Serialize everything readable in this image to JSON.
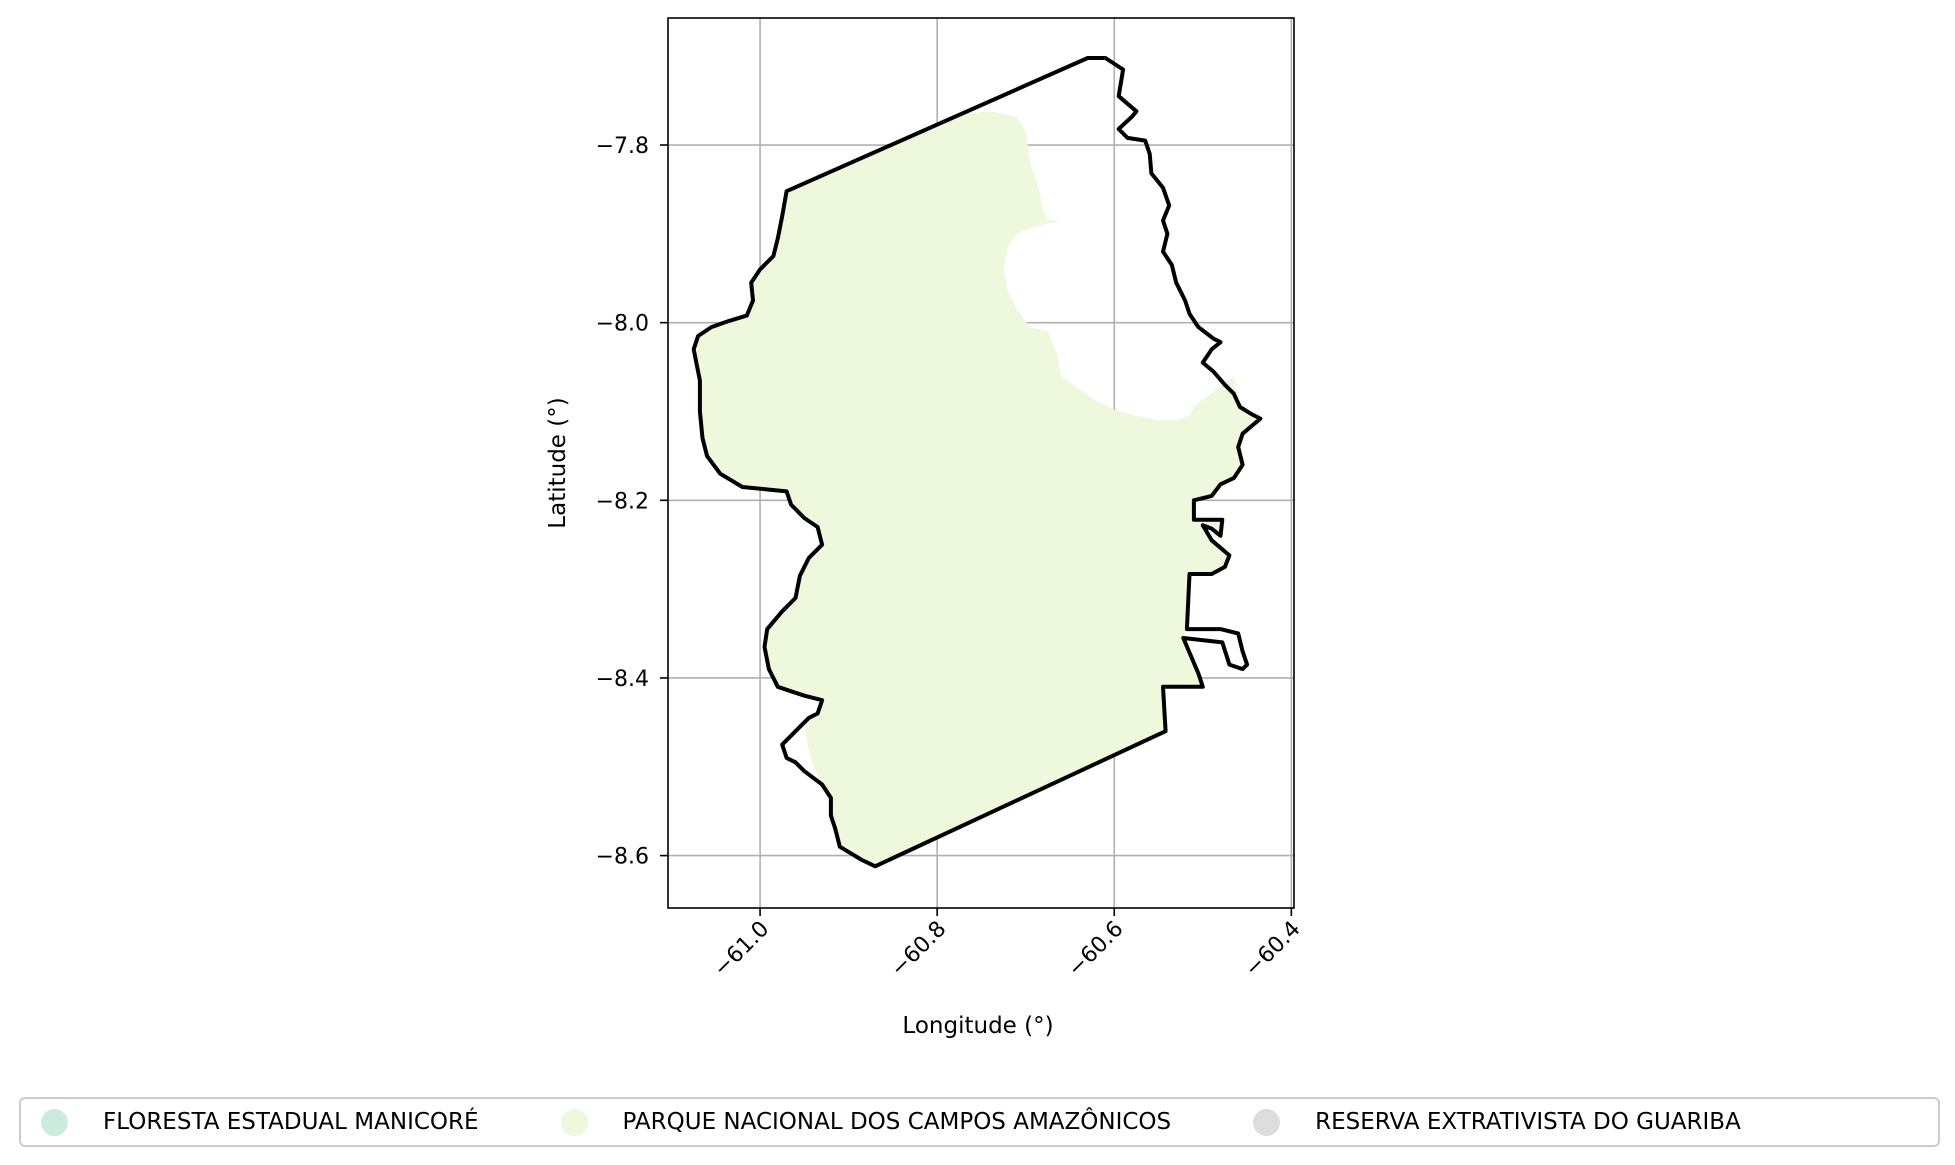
{
  "chart_data": {
    "type": "map",
    "xlabel": "Longitude (°)",
    "ylabel": "Latitude (°)",
    "xlim": [
      -61.104,
      -60.397
    ],
    "ylim": [
      -8.659,
      -7.657
    ],
    "xticks": [
      -61.0,
      -60.8,
      -60.6,
      -60.4
    ],
    "yticks": [
      -7.8,
      -8.0,
      -8.2,
      -8.4,
      -8.6
    ],
    "xtick_labels": [
      "−61.0",
      "−60.8",
      "−60.6",
      "−60.4"
    ],
    "ytick_labels": [
      "−7.8",
      "−8.0",
      "−8.2",
      "−8.4",
      "−8.6"
    ],
    "grid": true,
    "legend_position": "bottom",
    "boundary": {
      "color": "#000000",
      "coords": [
        [
          -60.97,
          -7.852
        ],
        [
          -60.63,
          -7.702
        ],
        [
          -60.61,
          -7.702
        ],
        [
          -60.59,
          -7.715
        ],
        [
          -60.595,
          -7.745
        ],
        [
          -60.575,
          -7.762
        ],
        [
          -60.58,
          -7.768
        ],
        [
          -60.595,
          -7.782
        ],
        [
          -60.585,
          -7.792
        ],
        [
          -60.565,
          -7.795
        ],
        [
          -60.56,
          -7.81
        ],
        [
          -60.558,
          -7.832
        ],
        [
          -60.545,
          -7.848
        ],
        [
          -60.538,
          -7.868
        ],
        [
          -60.545,
          -7.885
        ],
        [
          -60.54,
          -7.9
        ],
        [
          -60.545,
          -7.92
        ],
        [
          -60.535,
          -7.935
        ],
        [
          -60.53,
          -7.955
        ],
        [
          -60.52,
          -7.975
        ],
        [
          -60.515,
          -7.99
        ],
        [
          -60.505,
          -8.005
        ],
        [
          -60.488,
          -8.018
        ],
        [
          -60.48,
          -8.022
        ],
        [
          -60.49,
          -8.03
        ],
        [
          -60.5,
          -8.045
        ],
        [
          -60.488,
          -8.055
        ],
        [
          -60.475,
          -8.07
        ],
        [
          -60.465,
          -8.08
        ],
        [
          -60.458,
          -8.095
        ],
        [
          -60.445,
          -8.103
        ],
        [
          -60.435,
          -8.108
        ],
        [
          -60.455,
          -8.125
        ],
        [
          -60.46,
          -8.14
        ],
        [
          -60.455,
          -8.16
        ],
        [
          -60.465,
          -8.175
        ],
        [
          -60.48,
          -8.182
        ],
        [
          -60.49,
          -8.195
        ],
        [
          -60.51,
          -8.2
        ],
        [
          -60.51,
          -8.222
        ],
        [
          -60.478,
          -8.222
        ],
        [
          -60.48,
          -8.24
        ],
        [
          -60.49,
          -8.232
        ],
        [
          -60.5,
          -8.228
        ],
        [
          -60.49,
          -8.245
        ],
        [
          -60.47,
          -8.262
        ],
        [
          -60.475,
          -8.275
        ],
        [
          -60.49,
          -8.283
        ],
        [
          -60.515,
          -8.283
        ],
        [
          -60.518,
          -8.345
        ],
        [
          -60.48,
          -8.345
        ],
        [
          -60.46,
          -8.35
        ],
        [
          -60.455,
          -8.37
        ],
        [
          -60.45,
          -8.385
        ],
        [
          -60.455,
          -8.39
        ],
        [
          -60.47,
          -8.385
        ],
        [
          -60.478,
          -8.36
        ],
        [
          -60.522,
          -8.355
        ],
        [
          -60.505,
          -8.395
        ],
        [
          -60.5,
          -8.41
        ],
        [
          -60.545,
          -8.41
        ],
        [
          -60.542,
          -8.46
        ],
        [
          -60.87,
          -8.612
        ],
        [
          -60.885,
          -8.605
        ],
        [
          -60.91,
          -8.59
        ],
        [
          -60.915,
          -8.57
        ],
        [
          -60.92,
          -8.555
        ],
        [
          -60.92,
          -8.535
        ],
        [
          -60.93,
          -8.52
        ],
        [
          -60.95,
          -8.505
        ],
        [
          -60.96,
          -8.495
        ],
        [
          -60.97,
          -8.49
        ],
        [
          -60.975,
          -8.475
        ],
        [
          -60.965,
          -8.465
        ],
        [
          -60.955,
          -8.455
        ],
        [
          -60.945,
          -8.445
        ],
        [
          -60.935,
          -8.44
        ],
        [
          -60.93,
          -8.425
        ],
        [
          -60.95,
          -8.42
        ],
        [
          -60.965,
          -8.415
        ],
        [
          -60.98,
          -8.41
        ],
        [
          -60.99,
          -8.39
        ],
        [
          -60.995,
          -8.365
        ],
        [
          -60.992,
          -8.345
        ],
        [
          -60.975,
          -8.325
        ],
        [
          -60.96,
          -8.31
        ],
        [
          -60.955,
          -8.285
        ],
        [
          -60.945,
          -8.265
        ],
        [
          -60.93,
          -8.25
        ],
        [
          -60.935,
          -8.23
        ],
        [
          -60.95,
          -8.22
        ],
        [
          -60.965,
          -8.205
        ],
        [
          -60.97,
          -8.19
        ],
        [
          -60.99,
          -8.188
        ],
        [
          -61.02,
          -8.185
        ],
        [
          -61.045,
          -8.17
        ],
        [
          -61.06,
          -8.15
        ],
        [
          -61.065,
          -8.13
        ],
        [
          -61.068,
          -8.1
        ],
        [
          -61.068,
          -8.065
        ],
        [
          -61.072,
          -8.045
        ],
        [
          -61.075,
          -8.03
        ],
        [
          -61.07,
          -8.015
        ],
        [
          -61.055,
          -8.005
        ],
        [
          -61.035,
          -7.998
        ],
        [
          -61.015,
          -7.992
        ],
        [
          -61.008,
          -7.975
        ],
        [
          -61.01,
          -7.955
        ],
        [
          -61.0,
          -7.94
        ],
        [
          -60.985,
          -7.925
        ],
        [
          -60.98,
          -7.905
        ],
        [
          -60.975,
          -7.88
        ],
        [
          -60.97,
          -7.852
        ]
      ]
    },
    "series": [
      {
        "name": "FLORESTA ESTADUAL MANICORÉ",
        "color": "#cdebdd",
        "features": []
      },
      {
        "name": "PARQUE NACIONAL DOS CAMPOS AMAZÔNICOS",
        "color": "#eef8dd",
        "features": [
          [
            [
              -60.97,
              -7.852
            ],
            [
              -60.77,
              -7.765
            ],
            [
              -60.74,
              -7.762
            ],
            [
              -60.71,
              -7.768
            ],
            [
              -60.7,
              -7.785
            ],
            [
              -60.695,
              -7.82
            ],
            [
              -60.685,
              -7.85
            ],
            [
              -60.68,
              -7.875
            ],
            [
              -60.675,
              -7.885
            ],
            [
              -60.66,
              -7.885
            ],
            [
              -60.69,
              -7.892
            ],
            [
              -60.71,
              -7.9
            ],
            [
              -60.72,
              -7.915
            ],
            [
              -60.725,
              -7.94
            ],
            [
              -60.72,
              -7.965
            ],
            [
              -60.71,
              -7.985
            ],
            [
              -60.695,
              -8.005
            ],
            [
              -60.675,
              -8.01
            ],
            [
              -60.665,
              -8.035
            ],
            [
              -60.66,
              -8.06
            ],
            [
              -60.625,
              -8.085
            ],
            [
              -60.6,
              -8.098
            ],
            [
              -60.575,
              -8.105
            ],
            [
              -60.55,
              -8.11
            ],
            [
              -60.53,
              -8.11
            ],
            [
              -60.515,
              -8.105
            ],
            [
              -60.51,
              -8.095
            ],
            [
              -60.465,
              -8.06
            ],
            [
              -60.458,
              -8.095
            ],
            [
              -60.445,
              -8.103
            ],
            [
              -60.435,
              -8.108
            ],
            [
              -60.455,
              -8.125
            ],
            [
              -60.46,
              -8.14
            ],
            [
              -60.455,
              -8.16
            ],
            [
              -60.465,
              -8.175
            ],
            [
              -60.48,
              -8.182
            ],
            [
              -60.49,
              -8.195
            ],
            [
              -60.51,
              -8.2
            ],
            [
              -60.51,
              -8.222
            ],
            [
              -60.478,
              -8.222
            ],
            [
              -60.48,
              -8.24
            ],
            [
              -60.49,
              -8.232
            ],
            [
              -60.5,
              -8.228
            ],
            [
              -60.49,
              -8.245
            ],
            [
              -60.47,
              -8.262
            ],
            [
              -60.475,
              -8.275
            ],
            [
              -60.49,
              -8.283
            ],
            [
              -60.515,
              -8.283
            ],
            [
              -60.518,
              -8.345
            ],
            [
              -60.522,
              -8.355
            ],
            [
              -60.505,
              -8.395
            ],
            [
              -60.5,
              -8.41
            ],
            [
              -60.545,
              -8.41
            ],
            [
              -60.542,
              -8.46
            ],
            [
              -60.87,
              -8.612
            ],
            [
              -60.885,
              -8.605
            ],
            [
              -60.91,
              -8.59
            ],
            [
              -60.915,
              -8.57
            ],
            [
              -60.92,
              -8.555
            ],
            [
              -60.92,
              -8.535
            ],
            [
              -60.93,
              -8.52
            ],
            [
              -60.94,
              -8.5
            ],
            [
              -60.945,
              -8.48
            ],
            [
              -60.95,
              -8.455
            ],
            [
              -60.945,
              -8.445
            ],
            [
              -60.935,
              -8.44
            ],
            [
              -60.93,
              -8.425
            ],
            [
              -60.95,
              -8.42
            ],
            [
              -60.965,
              -8.415
            ],
            [
              -60.98,
              -8.41
            ],
            [
              -60.99,
              -8.39
            ],
            [
              -60.995,
              -8.365
            ],
            [
              -60.992,
              -8.345
            ],
            [
              -60.975,
              -8.325
            ],
            [
              -60.96,
              -8.31
            ],
            [
              -60.955,
              -8.285
            ],
            [
              -60.945,
              -8.265
            ],
            [
              -60.93,
              -8.25
            ],
            [
              -60.935,
              -8.23
            ],
            [
              -60.95,
              -8.22
            ],
            [
              -60.965,
              -8.205
            ],
            [
              -60.97,
              -8.19
            ],
            [
              -60.99,
              -8.188
            ],
            [
              -61.02,
              -8.185
            ],
            [
              -61.045,
              -8.17
            ],
            [
              -61.06,
              -8.15
            ],
            [
              -61.065,
              -8.13
            ],
            [
              -61.068,
              -8.1
            ],
            [
              -61.068,
              -8.065
            ],
            [
              -61.072,
              -8.045
            ],
            [
              -61.075,
              -8.03
            ],
            [
              -61.07,
              -8.015
            ],
            [
              -61.055,
              -8.005
            ],
            [
              -61.035,
              -7.998
            ],
            [
              -61.015,
              -7.992
            ],
            [
              -61.008,
              -7.975
            ],
            [
              -61.01,
              -7.955
            ],
            [
              -61.0,
              -7.94
            ],
            [
              -60.985,
              -7.925
            ],
            [
              -60.98,
              -7.905
            ],
            [
              -60.975,
              -7.88
            ],
            [
              -60.97,
              -7.852
            ]
          ]
        ]
      },
      {
        "name": "RESERVA EXTRATIVISTA DO GUARIBA",
        "color": "#dddddd",
        "features": []
      }
    ]
  }
}
